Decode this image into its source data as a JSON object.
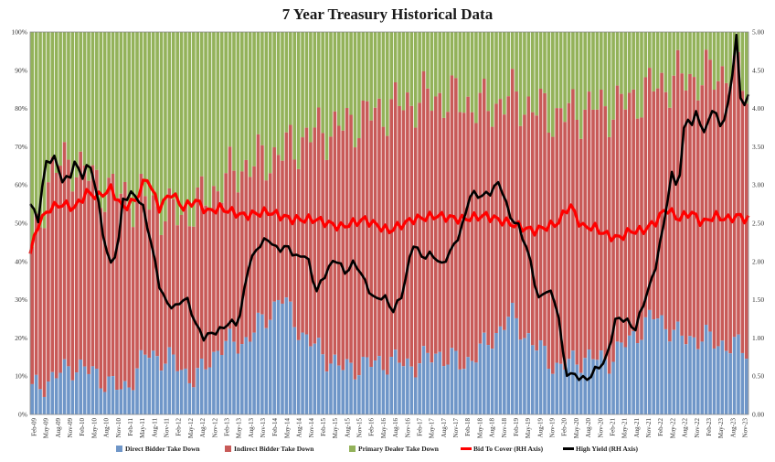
{
  "chart_data": {
    "type": "bar",
    "title": "7 Year Treasury Historical Data",
    "xlabel": "",
    "ylabel": "",
    "left_axis": {
      "ylim": [
        0,
        100
      ],
      "ticks": [
        "0%",
        "10%",
        "20%",
        "30%",
        "40%",
        "50%",
        "60%",
        "70%",
        "80%",
        "90%",
        "100%"
      ]
    },
    "right_axis": {
      "ylim": [
        0,
        5
      ],
      "ticks": [
        "0.00",
        "0.50",
        "1.00",
        "1.50",
        "2.00",
        "2.50",
        "3.00",
        "3.50",
        "4.00",
        "4.50",
        "5.00"
      ]
    },
    "x_tick_labels": [
      "Feb-09",
      "May-09",
      "Aug-09",
      "Nov-09",
      "Feb-10",
      "May-10",
      "Aug-10",
      "Nov-10",
      "Feb-11",
      "May-11",
      "Aug-11",
      "Nov-11",
      "Feb-12",
      "May-12",
      "Aug-12",
      "Nov-12",
      "Feb-13",
      "May-13",
      "Aug-13",
      "Nov-13",
      "Feb-14",
      "May-14",
      "Aug-14",
      "Nov-14",
      "Feb-15",
      "May-15",
      "Aug-15",
      "Nov-15",
      "Feb-16",
      "May-16",
      "Aug-16",
      "Nov-16",
      "Feb-17",
      "May-17",
      "Aug-17",
      "Nov-17",
      "Feb-18",
      "May-18",
      "Aug-18",
      "Nov-18",
      "Feb-19",
      "May-19",
      "Aug-19",
      "Nov-19",
      "Feb-20",
      "May-20",
      "Aug-20",
      "Nov-20",
      "Feb-21",
      "May-21",
      "Aug-21",
      "Nov-21",
      "Feb-22",
      "May-22",
      "Aug-22",
      "Nov-22",
      "Feb-23",
      "May-23",
      "Aug-23",
      "Nov-23"
    ],
    "legend_position": "bottom",
    "grid": false,
    "colors": {
      "direct": "#6f96c8",
      "indirect": "#c85a58",
      "dealer": "#93b25a",
      "btc": "#ff0000",
      "yield": "#000000"
    },
    "series": [
      {
        "name": "Direct Bidder Take Down",
        "axis": "left",
        "style": "stacked-bar",
        "key_values": [
          [
            2009.08,
            6
          ],
          [
            2010.0,
            13
          ],
          [
            2010.5,
            10
          ],
          [
            2011.0,
            6
          ],
          [
            2011.5,
            16
          ],
          [
            2012.0,
            14
          ],
          [
            2012.5,
            9
          ],
          [
            2013.0,
            18
          ],
          [
            2013.5,
            19
          ],
          [
            2014.0,
            26
          ],
          [
            2014.25,
            31
          ],
          [
            2014.75,
            20
          ],
          [
            2015.5,
            12
          ],
          [
            2016.5,
            14
          ],
          [
            2017.0,
            13
          ],
          [
            2017.5,
            16
          ],
          [
            2018.0,
            13
          ],
          [
            2018.5,
            18
          ],
          [
            2019.0,
            26
          ],
          [
            2019.5,
            18
          ],
          [
            2020.0,
            12
          ],
          [
            2020.5,
            15
          ],
          [
            2021.0,
            14
          ],
          [
            2021.5,
            20
          ],
          [
            2022.0,
            26
          ],
          [
            2022.5,
            20
          ],
          [
            2023.0,
            20
          ],
          [
            2023.5,
            18
          ],
          [
            2023.9,
            17
          ]
        ]
      },
      {
        "name": "Indirect Bidder Take Down",
        "axis": "left",
        "style": "stacked-bar-cumulative",
        "key_values": [
          [
            2009.08,
            38
          ],
          [
            2009.5,
            64
          ],
          [
            2010.0,
            66
          ],
          [
            2010.5,
            60
          ],
          [
            2011.0,
            57
          ],
          [
            2011.5,
            56
          ],
          [
            2012.0,
            52
          ],
          [
            2012.5,
            54
          ],
          [
            2013.0,
            60
          ],
          [
            2013.5,
            65
          ],
          [
            2014.0,
            67
          ],
          [
            2014.5,
            70
          ],
          [
            2015.0,
            74
          ],
          [
            2015.5,
            75
          ],
          [
            2016.0,
            78
          ],
          [
            2016.5,
            80
          ],
          [
            2017.0,
            82
          ],
          [
            2017.5,
            83
          ],
          [
            2018.0,
            82
          ],
          [
            2018.5,
            80
          ],
          [
            2019.0,
            83
          ],
          [
            2019.5,
            80
          ],
          [
            2020.0,
            78
          ],
          [
            2020.5,
            80
          ],
          [
            2021.0,
            80
          ],
          [
            2021.5,
            82
          ],
          [
            2022.0,
            86
          ],
          [
            2022.5,
            88
          ],
          [
            2023.0,
            88
          ],
          [
            2023.5,
            90
          ],
          [
            2023.9,
            86
          ]
        ]
      },
      {
        "name": "Primary Dealer Take Down",
        "axis": "left",
        "style": "stacked-bar-remainder",
        "values_note": ""
      },
      {
        "name": "Bid To Cover (RH Axis)",
        "axis": "right",
        "style": "line",
        "key_values": [
          [
            2009.08,
            2.1
          ],
          [
            2009.25,
            2.5
          ],
          [
            2009.5,
            2.7
          ],
          [
            2009.75,
            2.75
          ],
          [
            2010.0,
            2.7
          ],
          [
            2010.25,
            2.9
          ],
          [
            2010.5,
            2.85
          ],
          [
            2010.75,
            2.95
          ],
          [
            2011.0,
            2.7
          ],
          [
            2011.25,
            2.8
          ],
          [
            2011.5,
            3.1
          ],
          [
            2011.75,
            2.7
          ],
          [
            2012.0,
            2.9
          ],
          [
            2012.25,
            2.7
          ],
          [
            2012.5,
            2.8
          ],
          [
            2012.75,
            2.65
          ],
          [
            2013.0,
            2.7
          ],
          [
            2013.5,
            2.6
          ],
          [
            2014.0,
            2.65
          ],
          [
            2014.5,
            2.55
          ],
          [
            2015.0,
            2.55
          ],
          [
            2015.5,
            2.45
          ],
          [
            2016.0,
            2.55
          ],
          [
            2016.5,
            2.4
          ],
          [
            2017.0,
            2.55
          ],
          [
            2017.5,
            2.6
          ],
          [
            2018.0,
            2.55
          ],
          [
            2018.5,
            2.6
          ],
          [
            2019.0,
            2.5
          ],
          [
            2019.5,
            2.4
          ],
          [
            2020.0,
            2.5
          ],
          [
            2020.25,
            2.75
          ],
          [
            2020.5,
            2.45
          ],
          [
            2020.75,
            2.45
          ],
          [
            2021.0,
            2.35
          ],
          [
            2021.25,
            2.3
          ],
          [
            2021.5,
            2.4
          ],
          [
            2021.75,
            2.4
          ],
          [
            2022.0,
            2.5
          ],
          [
            2022.25,
            2.7
          ],
          [
            2022.5,
            2.55
          ],
          [
            2022.75,
            2.65
          ],
          [
            2023.0,
            2.5
          ],
          [
            2023.25,
            2.6
          ],
          [
            2023.5,
            2.55
          ],
          [
            2023.75,
            2.6
          ],
          [
            2023.9,
            2.55
          ]
        ]
      },
      {
        "name": "High Yield (RH Axis)",
        "axis": "right",
        "style": "line",
        "key_values": [
          [
            2009.08,
            2.75
          ],
          [
            2009.25,
            2.55
          ],
          [
            2009.4,
            3.3
          ],
          [
            2009.6,
            3.35
          ],
          [
            2009.75,
            3.05
          ],
          [
            2009.9,
            3.1
          ],
          [
            2010.0,
            3.3
          ],
          [
            2010.15,
            3.1
          ],
          [
            2010.3,
            3.3
          ],
          [
            2010.45,
            2.95
          ],
          [
            2010.6,
            2.3
          ],
          [
            2010.75,
            1.95
          ],
          [
            2010.9,
            2.2
          ],
          [
            2011.0,
            2.8
          ],
          [
            2011.2,
            2.9
          ],
          [
            2011.4,
            2.75
          ],
          [
            2011.6,
            2.2
          ],
          [
            2011.75,
            1.7
          ],
          [
            2011.9,
            1.45
          ],
          [
            2012.1,
            1.4
          ],
          [
            2012.3,
            1.55
          ],
          [
            2012.5,
            1.2
          ],
          [
            2012.65,
            1.0
          ],
          [
            2012.8,
            1.05
          ],
          [
            2013.0,
            1.1
          ],
          [
            2013.2,
            1.2
          ],
          [
            2013.4,
            1.2
          ],
          [
            2013.6,
            1.95
          ],
          [
            2013.8,
            2.2
          ],
          [
            2014.0,
            2.3
          ],
          [
            2014.2,
            2.15
          ],
          [
            2014.4,
            2.2
          ],
          [
            2014.6,
            2.05
          ],
          [
            2014.8,
            2.1
          ],
          [
            2015.0,
            1.6
          ],
          [
            2015.2,
            1.85
          ],
          [
            2015.4,
            2.05
          ],
          [
            2015.6,
            1.85
          ],
          [
            2015.8,
            2.0
          ],
          [
            2016.0,
            1.75
          ],
          [
            2016.2,
            1.5
          ],
          [
            2016.4,
            1.55
          ],
          [
            2016.6,
            1.35
          ],
          [
            2016.8,
            1.6
          ],
          [
            2017.0,
            2.25
          ],
          [
            2017.2,
            2.05
          ],
          [
            2017.4,
            2.1
          ],
          [
            2017.6,
            1.95
          ],
          [
            2017.8,
            2.15
          ],
          [
            2018.0,
            2.4
          ],
          [
            2018.2,
            2.9
          ],
          [
            2018.4,
            2.85
          ],
          [
            2018.6,
            2.9
          ],
          [
            2018.8,
            3.05
          ],
          [
            2019.0,
            2.6
          ],
          [
            2019.2,
            2.45
          ],
          [
            2019.4,
            2.1
          ],
          [
            2019.6,
            1.5
          ],
          [
            2019.8,
            1.65
          ],
          [
            2020.0,
            1.4
          ],
          [
            2020.15,
            0.55
          ],
          [
            2020.4,
            0.5
          ],
          [
            2020.6,
            0.45
          ],
          [
            2020.8,
            0.6
          ],
          [
            2021.0,
            0.7
          ],
          [
            2021.2,
            1.25
          ],
          [
            2021.4,
            1.25
          ],
          [
            2021.6,
            1.1
          ],
          [
            2021.8,
            1.5
          ],
          [
            2022.0,
            1.85
          ],
          [
            2022.2,
            2.5
          ],
          [
            2022.35,
            3.15
          ],
          [
            2022.5,
            2.95
          ],
          [
            2022.65,
            3.95
          ],
          [
            2022.8,
            3.75
          ],
          [
            2022.9,
            4.05
          ],
          [
            2023.0,
            3.6
          ],
          [
            2023.2,
            4.0
          ],
          [
            2023.4,
            3.75
          ],
          [
            2023.55,
            4.1
          ],
          [
            2023.7,
            4.95
          ],
          [
            2023.8,
            3.95
          ],
          [
            2023.9,
            4.15
          ]
        ]
      }
    ]
  }
}
